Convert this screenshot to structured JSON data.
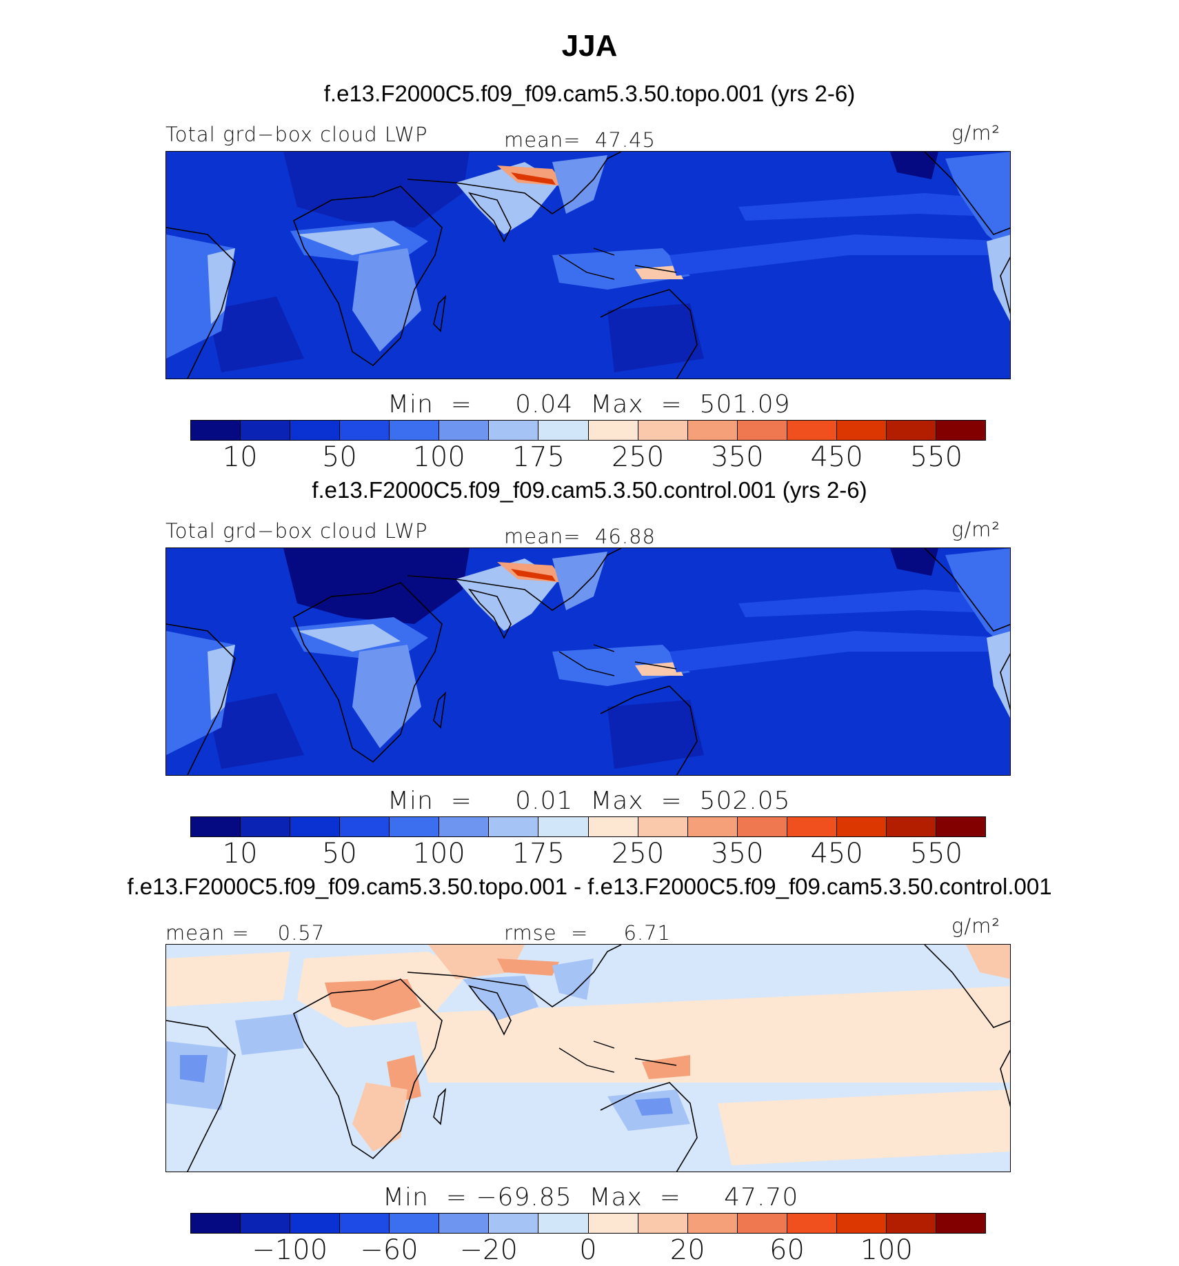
{
  "page_title": "JJA",
  "colors": {
    "palette": [
      "#050a82",
      "#0a23b4",
      "#0a32d2",
      "#1e4be6",
      "#3c6ef0",
      "#6e96f0",
      "#a5c3f5",
      "#d2e6fa",
      "#fde6d2",
      "#fac8aa",
      "#f5a078",
      "#f07850",
      "#f0501e",
      "#dc3700",
      "#b41e00",
      "#820000"
    ],
    "ocean_base": "#0b33cf",
    "diff_base": "#d6e7fb",
    "coast": "#000000"
  },
  "chart_data": [
    {
      "type": "heatmap",
      "case_title": "f.e13.F2000C5.f09_f09.cam5.3.50.topo.001 (yrs 2-6)",
      "variable": "Total grd−box cloud LWP",
      "mean_label": "mean=  47.45",
      "units": "g/m²",
      "stats": "Min  =     0.04  Max  =  501.09",
      "min": 0.04,
      "max": 501.09,
      "mean": 47.45,
      "colorbar_ticks": [
        "10",
        "50",
        "100",
        "175",
        "250",
        "350",
        "450",
        "550"
      ],
      "colorbar_levels": [
        10,
        25,
        50,
        75,
        100,
        125,
        150,
        175,
        200,
        250,
        300,
        350,
        400,
        450,
        500,
        550,
        600
      ]
    },
    {
      "type": "heatmap",
      "case_title": "f.e13.F2000C5.f09_f09.cam5.3.50.control.001 (yrs 2-6)",
      "variable": "Total grd−box cloud LWP",
      "mean_label": "mean=  46.88",
      "units": "g/m²",
      "stats": "Min  =     0.01  Max  =  502.05",
      "min": 0.01,
      "max": 502.05,
      "mean": 46.88,
      "colorbar_ticks": [
        "10",
        "50",
        "100",
        "175",
        "250",
        "350",
        "450",
        "550"
      ],
      "colorbar_levels": [
        10,
        25,
        50,
        75,
        100,
        125,
        150,
        175,
        200,
        250,
        300,
        350,
        400,
        450,
        500,
        550,
        600
      ]
    },
    {
      "type": "heatmap",
      "case_title": "f.e13.F2000C5.f09_f09.cam5.3.50.topo.001 - f.e13.F2000C5.f09_f09.cam5.3.50.control.001",
      "mean_label": "mean =    0.57",
      "rmse_label": "rmse  =     6.71",
      "units": "g/m²",
      "stats": "Min  = −69.85  Max  =     47.70",
      "min": -69.85,
      "max": 47.7,
      "mean": 0.57,
      "rmse": 6.71,
      "colorbar_ticks": [
        "−100",
        "−60",
        "−20",
        "0",
        "20",
        "60",
        "100"
      ],
      "colorbar_levels": [
        -120,
        -100,
        -80,
        -60,
        -40,
        -20,
        -10,
        0,
        10,
        20,
        40,
        60,
        80,
        100,
        120
      ]
    }
  ]
}
